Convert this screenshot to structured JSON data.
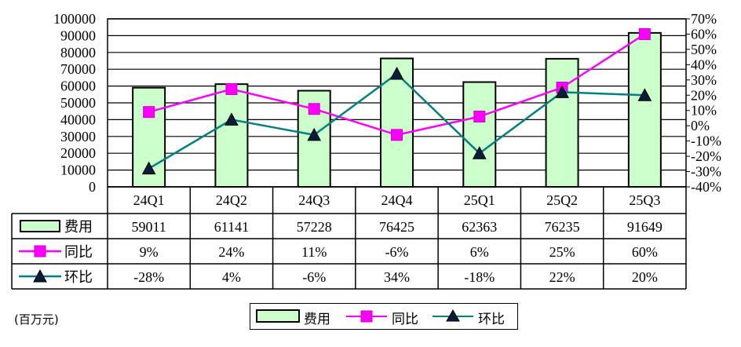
{
  "chart_data": {
    "type": "bar",
    "categories": [
      "24Q1",
      "24Q2",
      "24Q3",
      "24Q4",
      "25Q1",
      "25Q2",
      "25Q3"
    ],
    "ylim": [
      0,
      100000
    ],
    "y_ticks": [
      "100000",
      "90000",
      "80000",
      "70000",
      "60000",
      "50000",
      "40000",
      "30000",
      "20000",
      "10000",
      "0"
    ],
    "y2lim": [
      -40,
      70
    ],
    "y2_ticks": [
      "70%",
      "60%",
      "50%",
      "40%",
      "30%",
      "20%",
      "10%",
      "0%",
      "-10%",
      "-20%",
      "-30%",
      "-40%"
    ],
    "grid": true,
    "legend_position": "bottom",
    "unit_label": "(百万元)",
    "series": [
      {
        "name": "费用",
        "kind": "bar",
        "axis": "left",
        "color": "#ccffcc",
        "values": [
          59011,
          61141,
          57228,
          76425,
          62363,
          76235,
          91649
        ],
        "labels": [
          "59011",
          "61141",
          "57228",
          "76425",
          "62363",
          "76235",
          "91649"
        ]
      },
      {
        "name": "同比",
        "kind": "line",
        "axis": "right",
        "color": "#ff00ff",
        "marker": "square",
        "values": [
          9,
          24,
          11,
          -6,
          6,
          25,
          60
        ],
        "labels": [
          "9%",
          "24%",
          "11%",
          "-6%",
          "6%",
          "25%",
          "60%"
        ]
      },
      {
        "name": "环比",
        "kind": "line",
        "axis": "right",
        "color": "#008080",
        "marker": "triangle",
        "values": [
          -28,
          4,
          -6,
          34,
          -18,
          22,
          20
        ],
        "labels": [
          "-28%",
          "4%",
          "-6%",
          "34%",
          "-18%",
          "22%",
          "20%"
        ]
      }
    ]
  }
}
